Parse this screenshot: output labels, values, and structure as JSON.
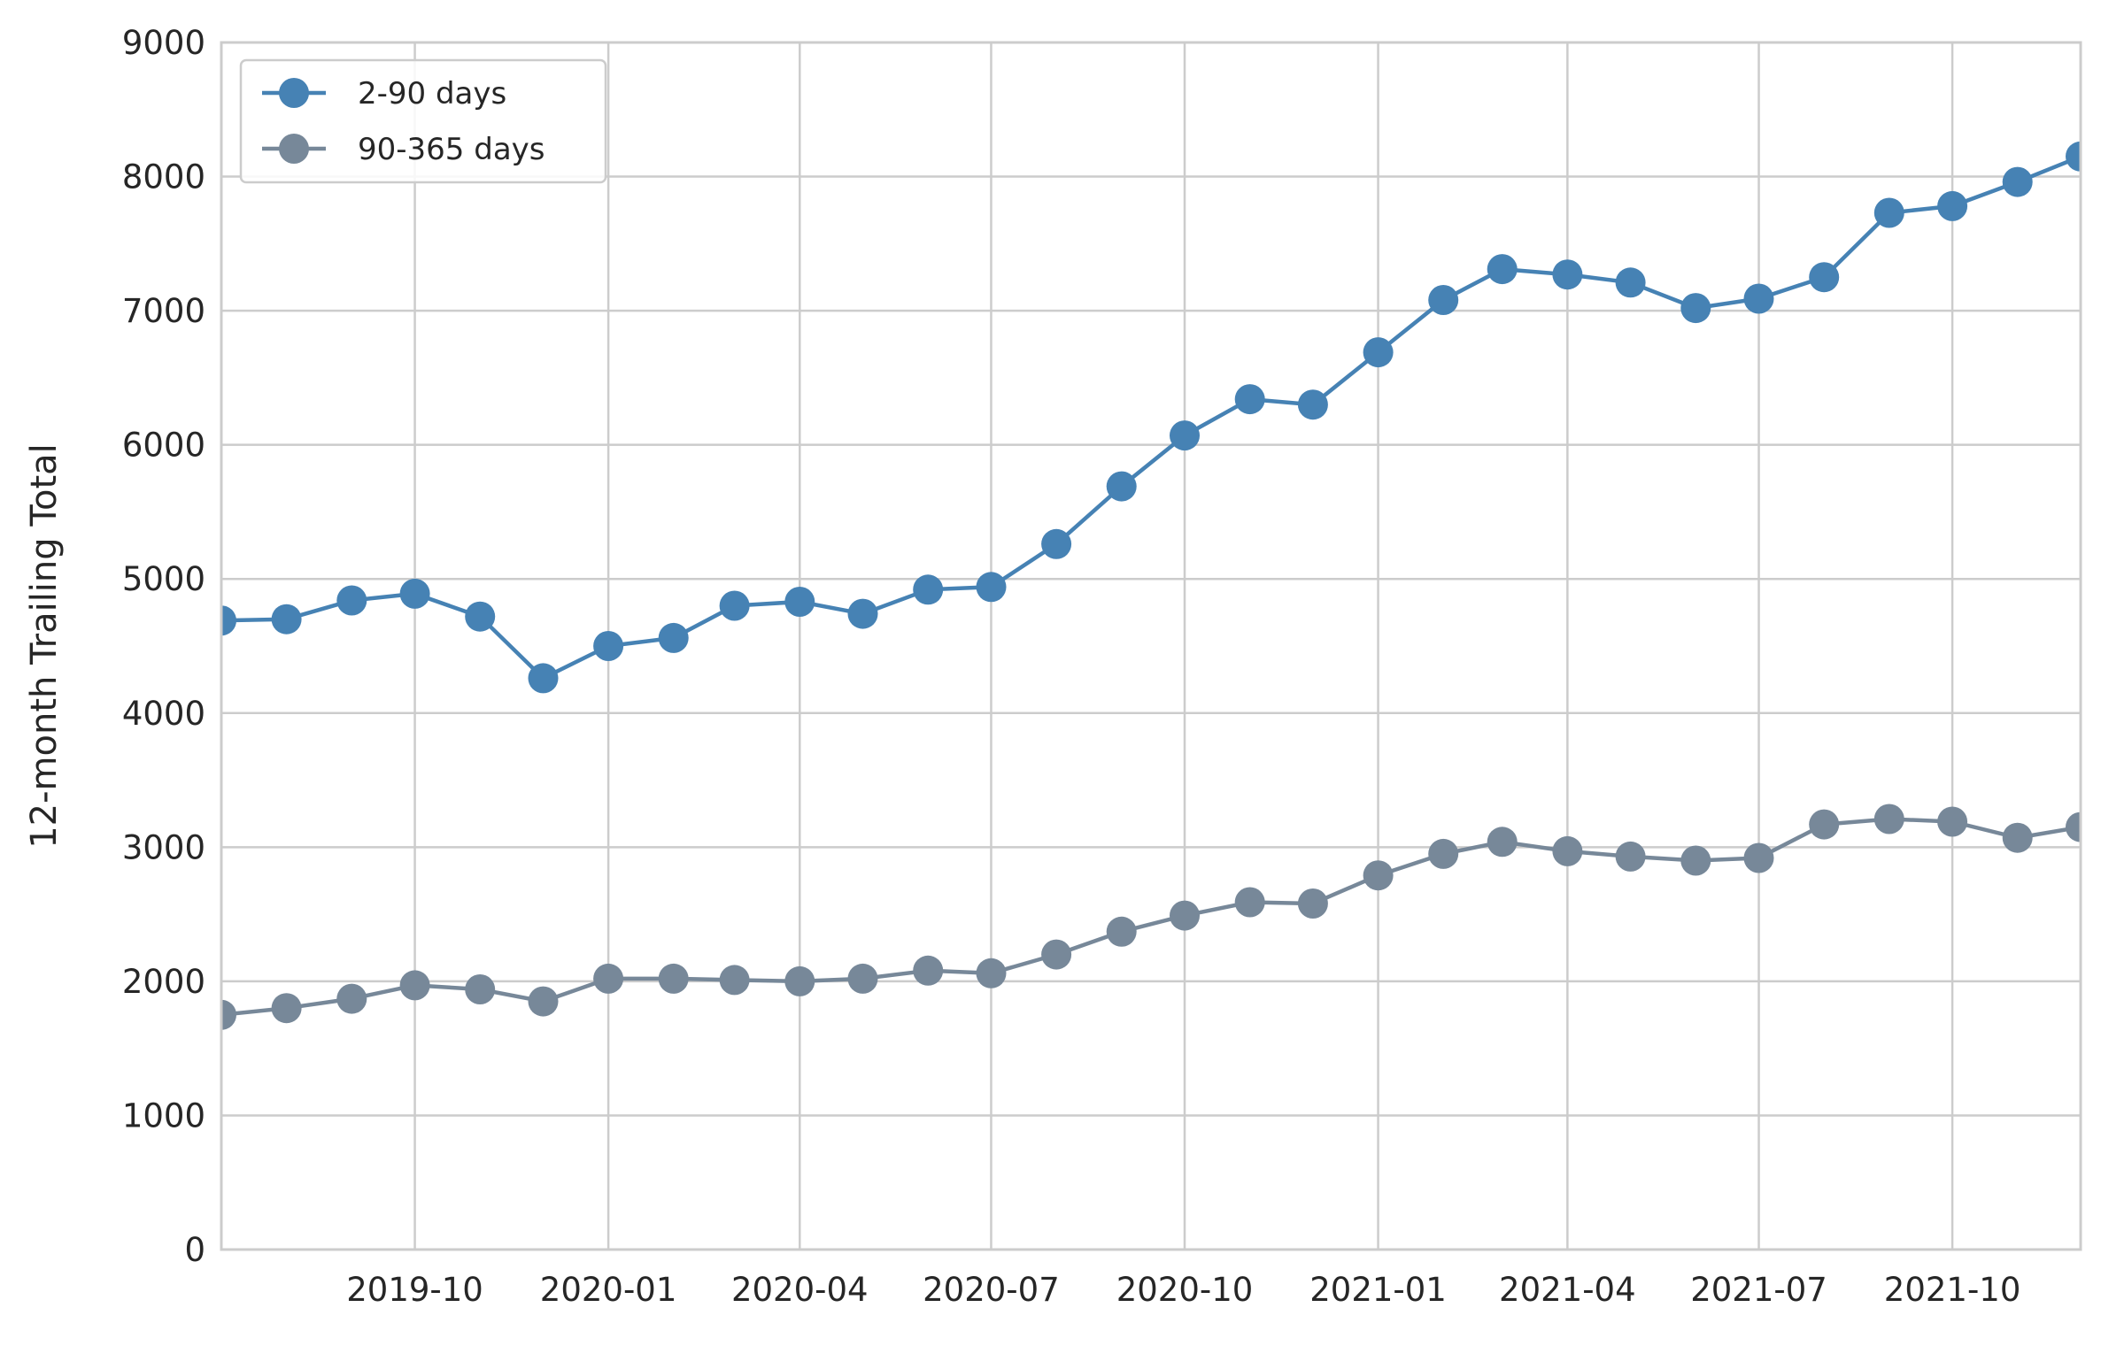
{
  "chart_data": {
    "type": "line",
    "title": "",
    "xlabel": "",
    "ylabel": "12-month Trailing Total",
    "ylim": [
      0,
      9000
    ],
    "xlim": [
      "2019-07-01",
      "2021-12-01"
    ],
    "y_ticks": [
      0,
      1000,
      2000,
      3000,
      4000,
      5000,
      6000,
      7000,
      8000,
      9000
    ],
    "x_ticks": [
      "2019-10-01",
      "2020-01-01",
      "2020-04-01",
      "2020-07-01",
      "2020-10-01",
      "2021-01-01",
      "2021-04-01",
      "2021-07-01",
      "2021-10-01"
    ],
    "x_tick_labels": [
      "2019-10",
      "2020-01",
      "2020-04",
      "2020-07",
      "2020-10",
      "2021-01",
      "2021-04",
      "2021-07",
      "2021-10"
    ],
    "grid": true,
    "legend_position": "top-left",
    "x": [
      "2019-07-01",
      "2019-08-01",
      "2019-09-01",
      "2019-10-01",
      "2019-11-01",
      "2019-12-01",
      "2020-01-01",
      "2020-02-01",
      "2020-03-01",
      "2020-04-01",
      "2020-05-01",
      "2020-06-01",
      "2020-07-01",
      "2020-08-01",
      "2020-09-01",
      "2020-10-01",
      "2020-11-01",
      "2020-12-01",
      "2021-01-01",
      "2021-02-01",
      "2021-03-01",
      "2021-04-01",
      "2021-05-01",
      "2021-06-01",
      "2021-07-01",
      "2021-08-01",
      "2021-09-01",
      "2021-10-01",
      "2021-11-01",
      "2021-12-01"
    ],
    "series": [
      {
        "name": "2-90 days",
        "color": "#4682b4",
        "values": [
          4690,
          4700,
          4840,
          4890,
          4720,
          4260,
          4500,
          4560,
          4800,
          4830,
          4740,
          4920,
          4940,
          5260,
          5690,
          6070,
          6340,
          6300,
          6690,
          7080,
          7310,
          7270,
          7210,
          7020,
          7090,
          7250,
          7730,
          7780,
          7960,
          8150
        ]
      },
      {
        "name": "90-365 days",
        "color": "#778899",
        "values": [
          1750,
          1800,
          1870,
          1970,
          1940,
          1850,
          2020,
          2020,
          2010,
          2000,
          2020,
          2080,
          2060,
          2200,
          2370,
          2490,
          2590,
          2580,
          2790,
          2950,
          3040,
          2970,
          2930,
          2900,
          2920,
          3170,
          3210,
          3190,
          3070,
          3150
        ]
      }
    ]
  }
}
